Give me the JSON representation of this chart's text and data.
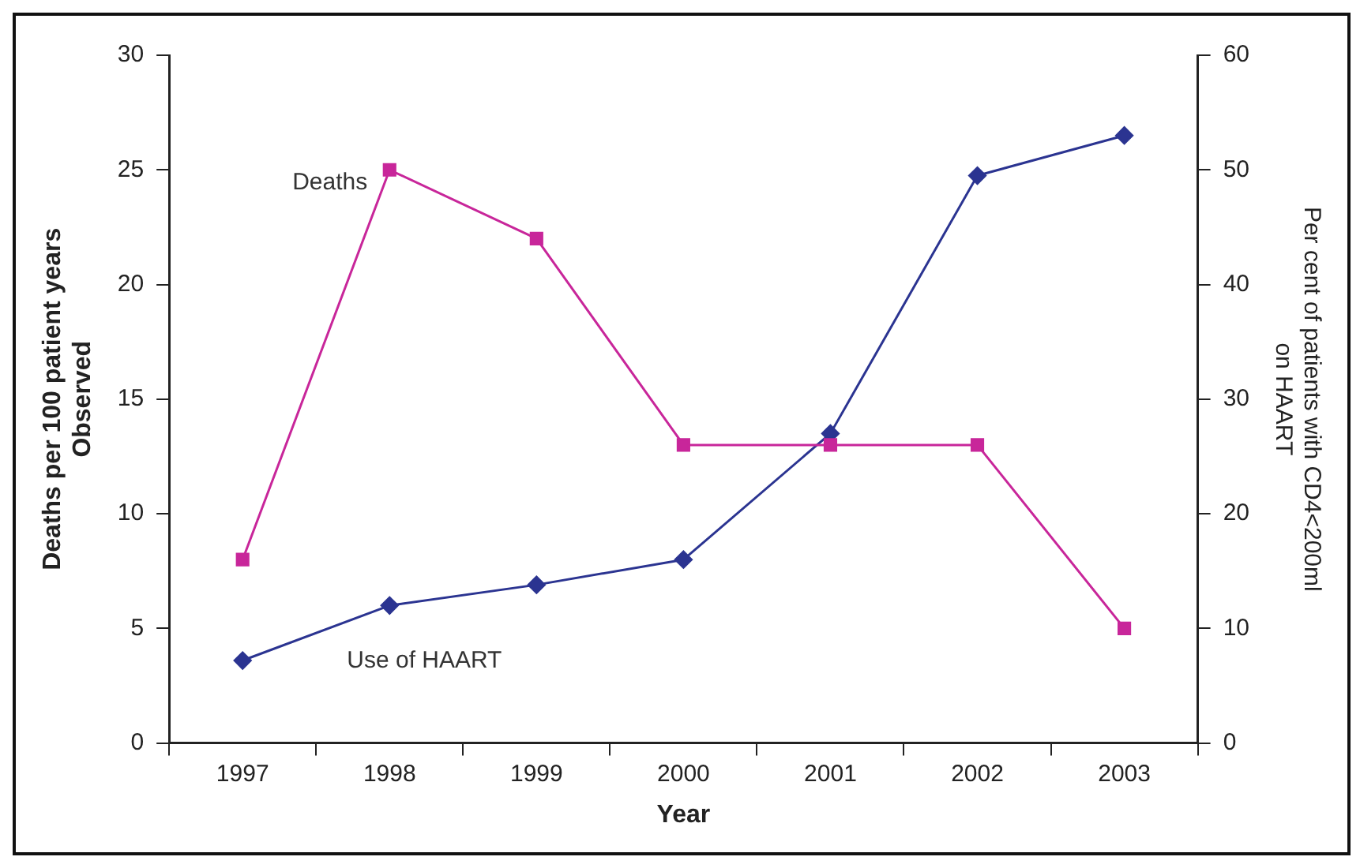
{
  "chart_data": {
    "type": "line",
    "xlabel": "Year",
    "ylabel": "Deaths per 100 patient years\nObserved",
    "y2label": "Per cent of patients with CD4<200ml\non HAART",
    "categories": [
      "1997",
      "1998",
      "1999",
      "2000",
      "2001",
      "2002",
      "2003"
    ],
    "series": [
      {
        "name": "Deaths",
        "color": "#c8269a",
        "marker": "square",
        "values": [
          8,
          25,
          22,
          13,
          13,
          13,
          5
        ]
      },
      {
        "name": "Use of HAART",
        "color": "#2b3491",
        "marker": "diamond",
        "axis": "y2",
        "values": [
          7.2,
          12,
          13.8,
          16,
          27,
          49.5,
          53
        ]
      }
    ],
    "ylim": [
      0,
      30
    ],
    "yticks": [
      0,
      5,
      10,
      15,
      20,
      25,
      30
    ],
    "y2lim": [
      0,
      60
    ],
    "y2ticks": [
      0,
      10,
      20,
      30,
      40,
      50,
      60
    ],
    "grid": false,
    "legend": false,
    "line_style": "solid"
  }
}
